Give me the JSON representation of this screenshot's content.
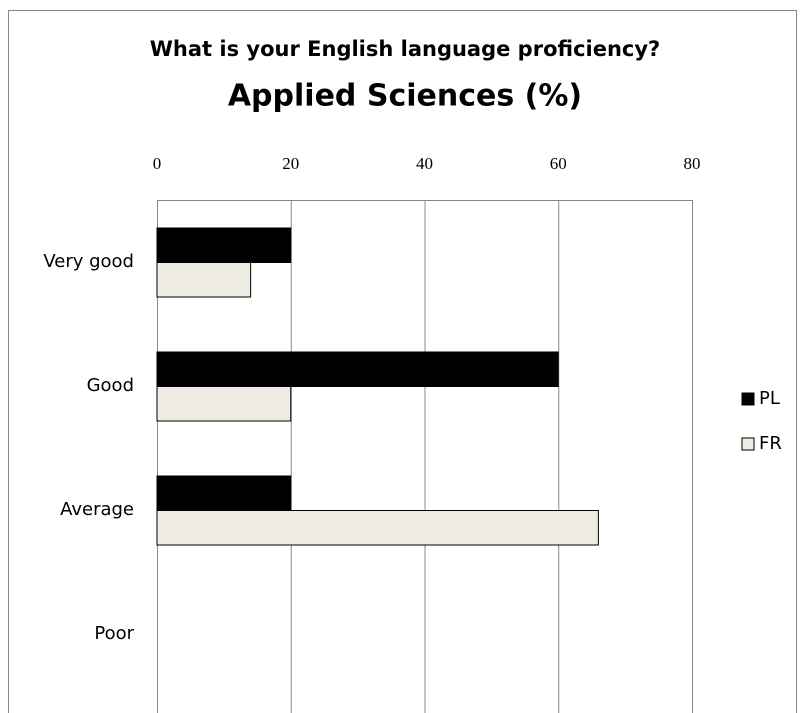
{
  "chart_data": {
    "type": "bar",
    "orientation": "horizontal",
    "title": "What is your English language proficiency?",
    "subtitle": "Applied Sciences (%)",
    "categories": [
      "Very good",
      "Good",
      "Average",
      "Poor"
    ],
    "series": [
      {
        "name": "PL",
        "color": "#000000",
        "values": [
          20,
          60,
          20,
          0
        ]
      },
      {
        "name": "FR",
        "color": "#eeebe2",
        "values": [
          14,
          20,
          66,
          0
        ]
      }
    ],
    "xlim": [
      0,
      80
    ],
    "xticks": [
      0,
      20,
      40,
      60,
      80
    ],
    "grid": true,
    "legend": "right"
  }
}
